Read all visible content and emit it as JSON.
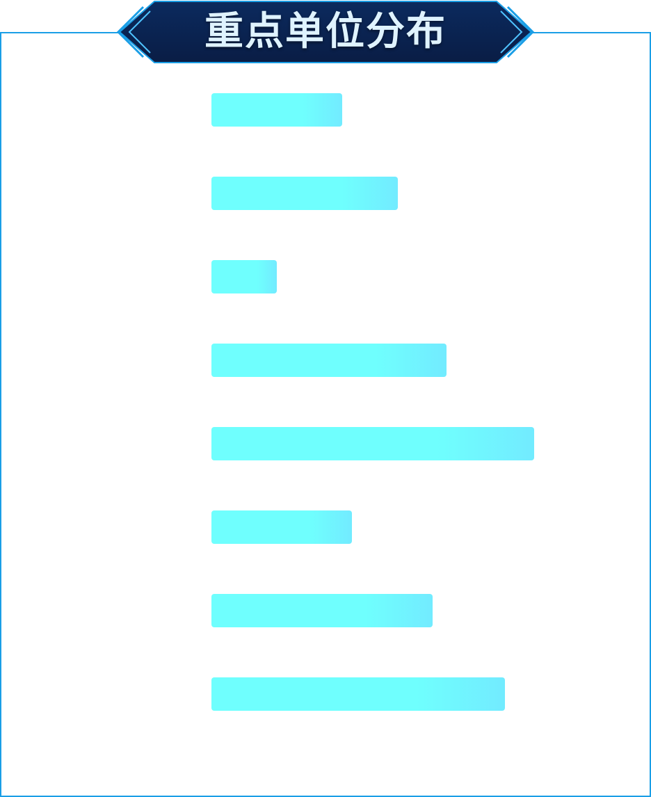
{
  "header": {
    "title": "重点单位分布"
  },
  "colors": {
    "frame": "#1a9ee6",
    "badge_top": "#0b2a5e",
    "badge_bottom": "#0a1d45",
    "bar_start": "#6ffffe",
    "bar_end": "#72ebff"
  },
  "chart_data": {
    "type": "bar",
    "orientation": "horizontal",
    "title": "重点单位分布",
    "categories": [
      "",
      "",
      "",
      "",
      "",
      "",
      "",
      ""
    ],
    "values": [
      188,
      268,
      94,
      338,
      464,
      202,
      318,
      422
    ],
    "xlim": [
      0,
      464
    ],
    "grid": false,
    "legend": "none"
  }
}
